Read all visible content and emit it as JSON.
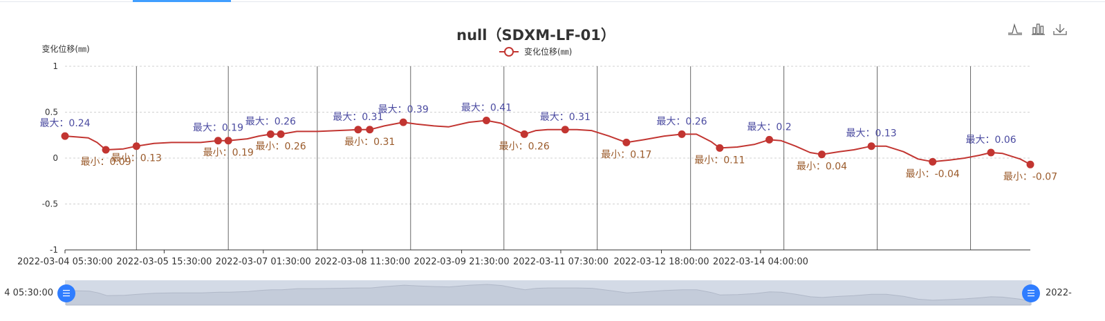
{
  "tab_bar": {
    "active_index": 0
  },
  "toolbox": {
    "icons": [
      "line-chart-icon",
      "bar-chart-icon",
      "download-icon"
    ]
  },
  "chart_data": {
    "type": "line",
    "title": "null（SDXM-LF-01）",
    "ylabel": "变化位移(㎜)",
    "ylim": [
      -1,
      1
    ],
    "yticks": [
      "1",
      "0.5",
      "0",
      "-0.5",
      "-1"
    ],
    "xticks": [
      "2022-03-04 05:30:00",
      "2022-03-05 15:30:00",
      "2022-03-07 01:30:00",
      "2022-03-08 11:30:00",
      "2022-03-09 21:30:00",
      "2022-03-11 07:30:00",
      "2022-03-12 18:00:00",
      "2022-03-14 04:00:00"
    ],
    "grid": true,
    "legend": {
      "position": "top-center",
      "entries": [
        "变化位移(㎜)"
      ]
    },
    "series": [
      {
        "name": "变化位移(㎜)",
        "color": "#c23531",
        "points": [
          [
            "2022-03-04 05:30:00",
            0.24
          ],
          [
            "2022-03-04 09:30:00",
            0.23
          ],
          [
            "2022-03-04 13:30:00",
            0.22
          ],
          [
            "2022-03-04 16:30:00",
            0.17
          ],
          [
            "2022-03-04 19:30:00",
            0.09
          ],
          [
            "2022-03-05 01:30:00",
            0.1
          ],
          [
            "2022-03-05 06:00:00",
            0.13
          ],
          [
            "2022-03-05 12:00:00",
            0.16
          ],
          [
            "2022-03-05 18:00:00",
            0.17
          ],
          [
            "2022-03-06 04:00:00",
            0.17
          ],
          [
            "2022-03-06 10:00:00",
            0.19
          ],
          [
            "2022-03-06 13:30:00",
            0.19
          ],
          [
            "2022-03-06 20:00:00",
            0.21
          ],
          [
            "2022-03-07 00:00:00",
            0.24
          ],
          [
            "2022-03-07 04:00:00",
            0.26
          ],
          [
            "2022-03-07 07:30:00",
            0.26
          ],
          [
            "2022-03-07 13:00:00",
            0.29
          ],
          [
            "2022-03-07 20:00:00",
            0.29
          ],
          [
            "2022-03-08 03:00:00",
            0.3
          ],
          [
            "2022-03-08 10:00:00",
            0.31
          ],
          [
            "2022-03-08 14:00:00",
            0.31
          ],
          [
            "2022-03-08 19:00:00",
            0.35
          ],
          [
            "2022-03-09 01:30:00",
            0.39
          ],
          [
            "2022-03-09 06:00:00",
            0.37
          ],
          [
            "2022-03-09 12:00:00",
            0.35
          ],
          [
            "2022-03-09 17:00:00",
            0.34
          ],
          [
            "2022-03-10 00:00:00",
            0.39
          ],
          [
            "2022-03-10 06:00:00",
            0.41
          ],
          [
            "2022-03-10 11:00:00",
            0.38
          ],
          [
            "2022-03-10 16:00:00",
            0.3
          ],
          [
            "2022-03-10 19:00:00",
            0.26
          ],
          [
            "2022-03-10 23:00:00",
            0.3
          ],
          [
            "2022-03-11 03:00:00",
            0.31
          ],
          [
            "2022-03-11 09:00:00",
            0.31
          ],
          [
            "2022-03-11 13:00:00",
            0.31
          ],
          [
            "2022-03-11 18:00:00",
            0.3
          ],
          [
            "2022-03-12 00:00:00",
            0.24
          ],
          [
            "2022-03-12 06:00:00",
            0.17
          ],
          [
            "2022-03-12 12:00:00",
            0.2
          ],
          [
            "2022-03-12 19:00:00",
            0.24
          ],
          [
            "2022-03-13 01:00:00",
            0.26
          ],
          [
            "2022-03-13 06:00:00",
            0.26
          ],
          [
            "2022-03-13 11:00:00",
            0.18
          ],
          [
            "2022-03-13 14:00:00",
            0.11
          ],
          [
            "2022-03-13 20:00:00",
            0.12
          ],
          [
            "2022-03-14 02:00:00",
            0.15
          ],
          [
            "2022-03-14 07:00:00",
            0.2
          ],
          [
            "2022-03-14 11:00:00",
            0.19
          ],
          [
            "2022-03-14 16:00:00",
            0.13
          ],
          [
            "2022-03-14 21:00:00",
            0.06
          ],
          [
            "2022-03-15 01:00:00",
            0.04
          ],
          [
            "2022-03-15 07:00:00",
            0.07
          ],
          [
            "2022-03-15 12:00:00",
            0.09
          ],
          [
            "2022-03-15 18:00:00",
            0.13
          ],
          [
            "2022-03-15 23:00:00",
            0.13
          ],
          [
            "2022-03-16 05:00:00",
            0.07
          ],
          [
            "2022-03-16 10:00:00",
            -0.01
          ],
          [
            "2022-03-16 15:00:00",
            -0.04
          ],
          [
            "2022-03-16 21:00:00",
            -0.02
          ],
          [
            "2022-03-17 02:00:00",
            0.0
          ],
          [
            "2022-03-17 07:00:00",
            0.03
          ],
          [
            "2022-03-17 11:00:00",
            0.06
          ],
          [
            "2022-03-17 15:00:00",
            0.05
          ],
          [
            "2022-03-17 21:00:00",
            -0.01
          ],
          [
            "2022-03-18 00:30:00",
            -0.07
          ]
        ]
      }
    ],
    "max_markers": [
      {
        "label": "最大：0.24",
        "x": "2022-03-04 05:30:00",
        "y": 0.24
      },
      {
        "label": "最大：0.19",
        "x": "2022-03-06 10:00:00",
        "y": 0.19
      },
      {
        "label": "最大：0.26",
        "x": "2022-03-07 04:00:00",
        "y": 0.26
      },
      {
        "label": "最大：0.31",
        "x": "2022-03-08 10:00:00",
        "y": 0.31
      },
      {
        "label": "最大：0.39",
        "x": "2022-03-09 01:30:00",
        "y": 0.39
      },
      {
        "label": "最大：0.41",
        "x": "2022-03-10 06:00:00",
        "y": 0.41
      },
      {
        "label": "最大：0.31",
        "x": "2022-03-11 09:00:00",
        "y": 0.31
      },
      {
        "label": "最大：0.26",
        "x": "2022-03-13 01:00:00",
        "y": 0.26
      },
      {
        "label": "最大：0.2",
        "x": "2022-03-14 07:00:00",
        "y": 0.2
      },
      {
        "label": "最大：0.13",
        "x": "2022-03-15 18:00:00",
        "y": 0.13
      },
      {
        "label": "最大：0.06",
        "x": "2022-03-17 11:00:00",
        "y": 0.06
      }
    ],
    "min_markers": [
      {
        "label": "最小：0.09",
        "x": "2022-03-04 19:30:00",
        "y": 0.09
      },
      {
        "label": "最小：0.13",
        "x": "2022-03-05 06:00:00",
        "y": 0.13
      },
      {
        "label": "最小：0.19",
        "x": "2022-03-06 13:30:00",
        "y": 0.19
      },
      {
        "label": "最小：0.26",
        "x": "2022-03-07 07:30:00",
        "y": 0.26
      },
      {
        "label": "最小：0.31",
        "x": "2022-03-08 14:00:00",
        "y": 0.31
      },
      {
        "label": "最小：0.26",
        "x": "2022-03-10 19:00:00",
        "y": 0.26
      },
      {
        "label": "最小：0.17",
        "x": "2022-03-12 06:00:00",
        "y": 0.17
      },
      {
        "label": "最小：0.11",
        "x": "2022-03-13 14:00:00",
        "y": 0.11
      },
      {
        "label": "最小：0.04",
        "x": "2022-03-15 01:00:00",
        "y": 0.04
      },
      {
        "label": "最小：-0.04",
        "x": "2022-03-16 15:00:00",
        "y": -0.04
      },
      {
        "label": "最小：-0.07",
        "x": "2022-03-18 00:30:00",
        "y": -0.07
      }
    ],
    "vertical_lines": [
      "2022-03-05 06:00:00",
      "2022-03-06 13:30:00",
      "2022-03-07 20:00:00",
      "2022-03-09 04:00:00",
      "2022-03-10 12:00:00",
      "2022-03-11 20:00:00",
      "2022-03-13 04:00:00",
      "2022-03-14 12:00:00",
      "2022-03-15 20:00:00",
      "2022-03-17 04:00:00"
    ]
  },
  "datazoom": {
    "start_label": "4 05:30:00",
    "end_label": "2022-",
    "range_percent": [
      0,
      100
    ]
  }
}
